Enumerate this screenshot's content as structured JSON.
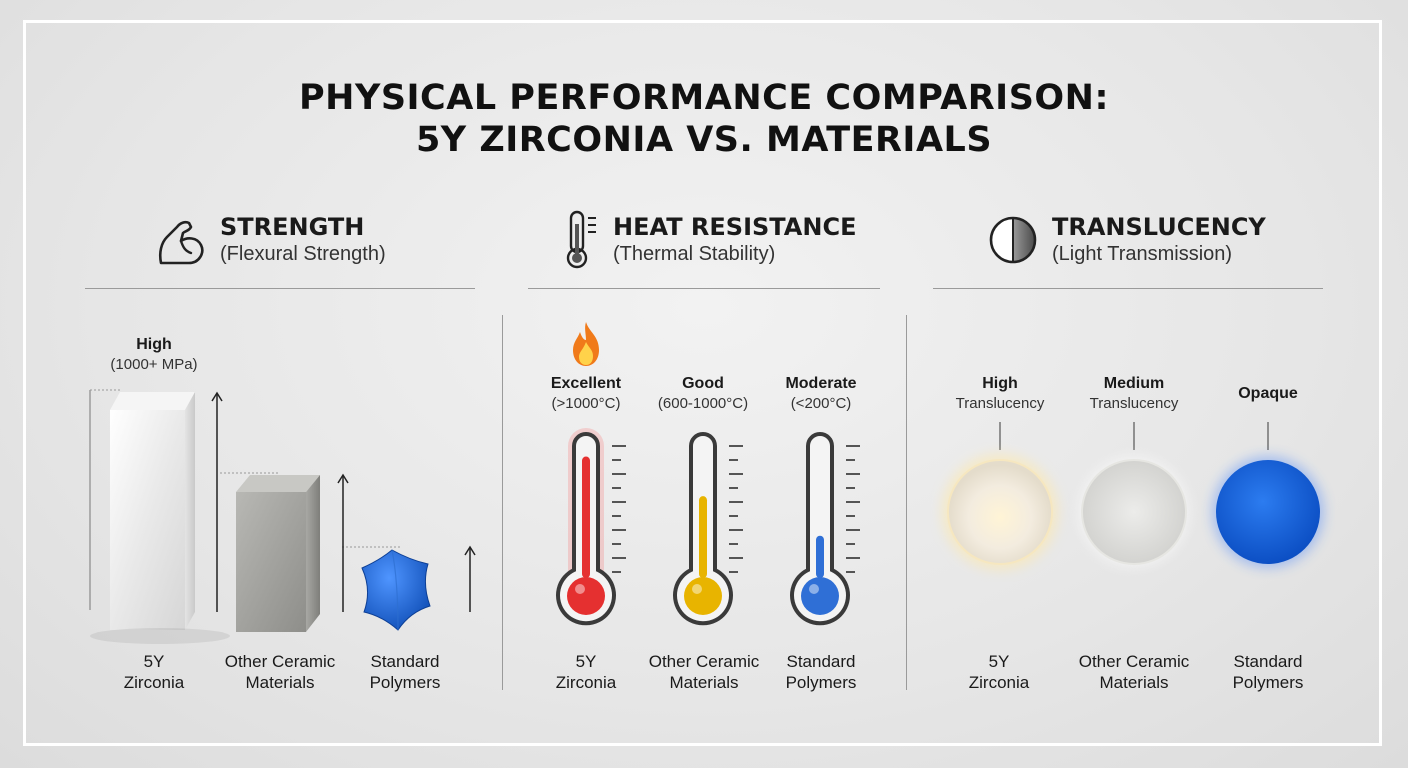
{
  "title": {
    "line1": "PHYSICAL PERFORMANCE COMPARISON:",
    "line2": "5Y ZIRCONIA VS. MATERIALS"
  },
  "sections": {
    "strength": {
      "title": "STRENGTH",
      "subtitle": "(Flexural Strength)",
      "icon": "muscle-arm-icon",
      "top_label": "High",
      "top_value": "(1000+ MPa)",
      "materials": [
        {
          "line1": "5Y",
          "line2": "Zirconia"
        },
        {
          "line1": "Other Ceramic",
          "line2": "Materials"
        },
        {
          "line1": "Standard",
          "line2": "Polymers"
        }
      ]
    },
    "heat": {
      "title": "HEAT RESISTANCE",
      "subtitle": "(Thermal Stability)",
      "icon": "thermometer-icon",
      "ratings": [
        {
          "label": "Excellent",
          "range": "(>1000°C)",
          "level": 0.92,
          "color": "#e53030",
          "icon": "fire-icon"
        },
        {
          "label": "Good",
          "range": "(600-1000°C)",
          "level": 0.62,
          "color": "#e8b400"
        },
        {
          "label": "Moderate",
          "range": "(<200°C)",
          "level": 0.32,
          "color": "#2f6fd6"
        }
      ],
      "materials": [
        {
          "line1": "5Y",
          "line2": "Zirconia"
        },
        {
          "line1": "Other Ceramic",
          "line2": "Materials"
        },
        {
          "line1": "Standard",
          "line2": "Polymers"
        }
      ]
    },
    "translucency": {
      "title": "TRANSLUCENCY",
      "subtitle": "(Light Transmission)",
      "icon": "half-circle-icon",
      "ratings": [
        {
          "label": "High",
          "sub": "Translucency"
        },
        {
          "label": "Medium",
          "sub": "Translucency"
        },
        {
          "label": "Opaque",
          "sub": ""
        }
      ],
      "materials": [
        {
          "line1": "5Y",
          "line2": "Zirconia"
        },
        {
          "line1": "Other Ceramic",
          "line2": "Materials"
        },
        {
          "line1": "Standard",
          "line2": "Polymers"
        }
      ]
    }
  }
}
